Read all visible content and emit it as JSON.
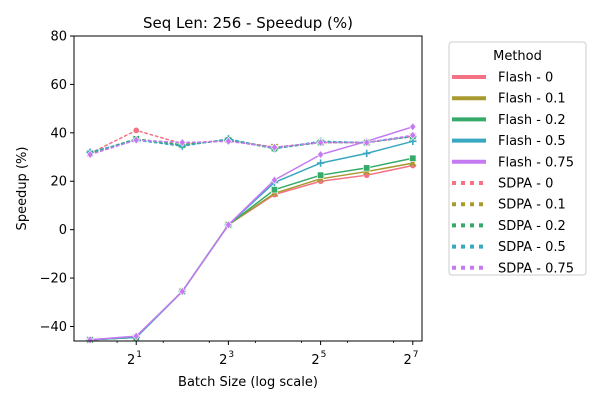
{
  "chart_data": {
    "type": "line",
    "title": "Seq Len: 256 -  Speedup (%)",
    "xlabel": "Batch Size (log scale)",
    "ylabel": "Speedup (%)",
    "x_scale": "log2",
    "x": [
      1,
      2,
      4,
      8,
      16,
      32,
      64,
      128
    ],
    "x_ticks": [
      {
        "value": 2,
        "base": "2",
        "exp": "1"
      },
      {
        "value": 8,
        "base": "2",
        "exp": "3"
      },
      {
        "value": 32,
        "base": "2",
        "exp": "5"
      },
      {
        "value": 128,
        "base": "2",
        "exp": "7"
      }
    ],
    "ylim": [
      -46,
      80
    ],
    "y_ticks": [
      {
        "value": -40,
        "label": "−40"
      },
      {
        "value": -20,
        "label": "−20"
      },
      {
        "value": 0,
        "label": "0"
      },
      {
        "value": 20,
        "label": "20"
      },
      {
        "value": 40,
        "label": "40"
      },
      {
        "value": 60,
        "label": "60"
      },
      {
        "value": 80,
        "label": "80"
      }
    ],
    "grid": false,
    "legend": {
      "title": "Method",
      "placement": "outside-right"
    },
    "series": [
      {
        "name": "Flash - 0",
        "color": "#f37385",
        "style": "solid",
        "marker": "circle",
        "values": [
          -45.5,
          -44.5,
          -25.5,
          2,
          14.5,
          20,
          22.5,
          26.5
        ]
      },
      {
        "name": "Flash - 0.1",
        "color": "#a89a2e",
        "style": "solid",
        "marker": "x",
        "values": [
          -45.5,
          -44.5,
          -25.5,
          2,
          15,
          21,
          24,
          27.5
        ]
      },
      {
        "name": "Flash - 0.2",
        "color": "#35aa6b",
        "style": "solid",
        "marker": "square",
        "values": [
          -45.5,
          -44.5,
          -25.5,
          2,
          16.5,
          22.5,
          25.5,
          29.5
        ]
      },
      {
        "name": "Flash - 0.5",
        "color": "#39a7bf",
        "style": "solid",
        "marker": "plus",
        "values": [
          -45.5,
          -44.5,
          -25.5,
          2,
          19.5,
          27.5,
          31.5,
          36.5
        ]
      },
      {
        "name": "Flash - 0.75",
        "color": "#c57af2",
        "style": "solid",
        "marker": "diamond",
        "values": [
          -45.5,
          -44,
          -25.5,
          2,
          20.5,
          31,
          36.5,
          42.5
        ]
      },
      {
        "name": "SDPA - 0",
        "color": "#f37385",
        "style": "dotted",
        "marker": "circle",
        "values": [
          31.5,
          41,
          35.5,
          37,
          34,
          36,
          36,
          38.5
        ]
      },
      {
        "name": "SDPA - 0.1",
        "color": "#a89a2e",
        "style": "dotted",
        "marker": "x",
        "values": [
          31.5,
          37.5,
          35,
          37,
          34,
          36,
          36,
          38.5
        ]
      },
      {
        "name": "SDPA - 0.2",
        "color": "#35aa6b",
        "style": "dotted",
        "marker": "square",
        "values": [
          31.5,
          37.5,
          35,
          37,
          33.5,
          36,
          36,
          38.5
        ]
      },
      {
        "name": "SDPA - 0.5",
        "color": "#39a7bf",
        "style": "dotted",
        "marker": "plus",
        "values": [
          32,
          37,
          34.5,
          37.5,
          33.5,
          36.5,
          36,
          38.5
        ]
      },
      {
        "name": "SDPA - 0.75",
        "color": "#c57af2",
        "style": "dotted",
        "marker": "diamond",
        "values": [
          31,
          37,
          36,
          36.5,
          34,
          36,
          36,
          39
        ]
      }
    ]
  }
}
